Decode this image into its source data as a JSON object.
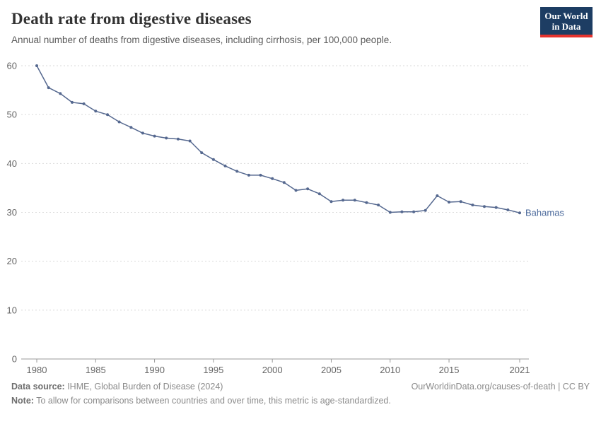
{
  "header": {
    "title": "Death rate from digestive diseases",
    "subtitle": "Annual number of deaths from digestive diseases, including cirrhosis, per 100,000 people.",
    "logo_line1": "Our World",
    "logo_line2": "in Data"
  },
  "chart_data": {
    "type": "line",
    "title": "Death rate from digestive diseases",
    "xlabel": "",
    "ylabel": "",
    "xlim": [
      1980,
      2021
    ],
    "ylim": [
      0,
      60
    ],
    "yticks": [
      0,
      10,
      20,
      30,
      40,
      50,
      60
    ],
    "xticks": [
      1980,
      1985,
      1990,
      1995,
      2000,
      2005,
      2010,
      2015,
      2021
    ],
    "grid": "horizontal-dashed",
    "legend_position": "end-of-line-label",
    "colors": {
      "line": "#55688f",
      "label": "#4c6a9c",
      "grid": "#dadada",
      "axis": "#999999",
      "tick_text": "#666666"
    },
    "series": [
      {
        "name": "Bahamas",
        "x": [
          1980,
          1981,
          1982,
          1983,
          1984,
          1985,
          1986,
          1987,
          1988,
          1989,
          1990,
          1991,
          1992,
          1993,
          1994,
          1995,
          1996,
          1997,
          1998,
          1999,
          2000,
          2001,
          2002,
          2003,
          2004,
          2005,
          2006,
          2007,
          2008,
          2009,
          2010,
          2011,
          2012,
          2013,
          2014,
          2015,
          2016,
          2017,
          2018,
          2019,
          2020,
          2021
        ],
        "values": [
          60.0,
          55.5,
          54.3,
          52.5,
          52.2,
          50.7,
          50.0,
          48.5,
          47.4,
          46.2,
          45.6,
          45.2,
          45.0,
          44.6,
          42.2,
          40.8,
          39.5,
          38.4,
          37.6,
          37.6,
          36.9,
          36.1,
          34.5,
          34.8,
          33.8,
          32.2,
          32.5,
          32.5,
          32.0,
          31.5,
          30.0,
          30.1,
          30.1,
          30.4,
          33.4,
          32.1,
          32.2,
          31.5,
          31.2,
          31.0,
          30.5,
          29.9
        ]
      }
    ]
  },
  "footer": {
    "source_label": "Data source:",
    "source_text": " IHME, Global Burden of Disease (2024)",
    "credit": "OurWorldinData.org/causes-of-death | CC BY",
    "note_label": "Note:",
    "note_text": " To allow for comparisons between countries and over time, this metric is age-standardized."
  }
}
